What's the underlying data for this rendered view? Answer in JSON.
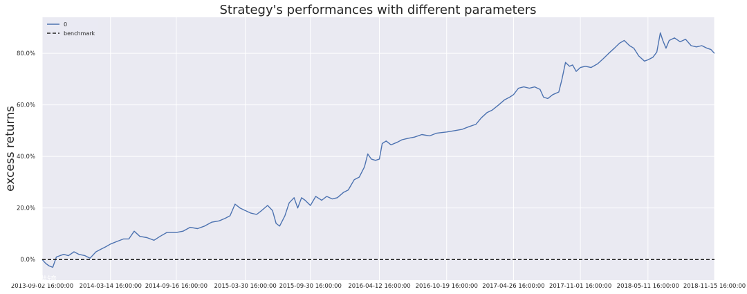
{
  "chart_data": {
    "type": "line",
    "title": "Strategy's performances with different parameters",
    "xlabel": "",
    "ylabel": "excess returns",
    "x_tick_labels": [
      "2013-09-02 16:00:00",
      "2014-03-14 16:00:00",
      "2014-09-16 16:00:00",
      "2015-03-30 16:00:00",
      "2015-09-30 16:00:00",
      "2016-04-12 16:00:00",
      "2016-10-19 16:00:00",
      "2017-04-26 16:00:00",
      "2017-11-01 16:00:00",
      "2018-05-11 16:00:00",
      "2018-11-15 16:00:00"
    ],
    "y_tick_labels": [
      "0.0%",
      "20.0%",
      "40.0%",
      "60.0%",
      "80.0%"
    ],
    "y_ticks": [
      0,
      20,
      40,
      60,
      80
    ],
    "ylim": [
      -8,
      94
    ],
    "xlim": [
      "2013-09-02",
      "2018-11-15"
    ],
    "grid": true,
    "legend_position": "top-left",
    "series": [
      {
        "name": "0",
        "color": "#4c72b0",
        "style": "solid",
        "points": [
          [
            "2013-09-02",
            0.0
          ],
          [
            "2013-09-12",
            -1.5
          ],
          [
            "2013-09-22",
            -2.5
          ],
          [
            "2013-10-02",
            -3.0
          ],
          [
            "2013-10-12",
            1.0
          ],
          [
            "2013-10-22",
            1.5
          ],
          [
            "2013-11-02",
            2.0
          ],
          [
            "2013-11-15",
            1.5
          ],
          [
            "2013-12-01",
            3.0
          ],
          [
            "2013-12-15",
            2.0
          ],
          [
            "2014-01-01",
            1.5
          ],
          [
            "2014-01-15",
            0.5
          ],
          [
            "2014-02-01",
            3.0
          ],
          [
            "2014-02-15",
            4.0
          ],
          [
            "2014-03-01",
            5.0
          ],
          [
            "2014-03-14",
            6.0
          ],
          [
            "2014-04-01",
            7.0
          ],
          [
            "2014-04-20",
            8.0
          ],
          [
            "2014-05-05",
            8.0
          ],
          [
            "2014-05-20",
            11.0
          ],
          [
            "2014-06-05",
            9.0
          ],
          [
            "2014-06-25",
            8.5
          ],
          [
            "2014-07-15",
            7.5
          ],
          [
            "2014-08-01",
            9.0
          ],
          [
            "2014-08-20",
            10.5
          ],
          [
            "2014-09-16",
            10.5
          ],
          [
            "2014-10-05",
            11.0
          ],
          [
            "2014-10-25",
            12.5
          ],
          [
            "2014-11-15",
            12.0
          ],
          [
            "2014-12-05",
            13.0
          ],
          [
            "2014-12-25",
            14.5
          ],
          [
            "2015-01-15",
            15.0
          ],
          [
            "2015-02-01",
            16.0
          ],
          [
            "2015-02-15",
            17.0
          ],
          [
            "2015-03-01",
            21.5
          ],
          [
            "2015-03-15",
            20.0
          ],
          [
            "2015-03-30",
            19.0
          ],
          [
            "2015-04-15",
            18.0
          ],
          [
            "2015-05-01",
            17.5
          ],
          [
            "2015-05-15",
            19.0
          ],
          [
            "2015-06-01",
            21.0
          ],
          [
            "2015-06-15",
            19.0
          ],
          [
            "2015-06-25",
            14.0
          ],
          [
            "2015-07-05",
            13.0
          ],
          [
            "2015-07-20",
            17.0
          ],
          [
            "2015-08-01",
            22.0
          ],
          [
            "2015-08-15",
            24.0
          ],
          [
            "2015-08-25",
            20.0
          ],
          [
            "2015-09-05",
            24.0
          ],
          [
            "2015-09-15",
            23.0
          ],
          [
            "2015-09-30",
            21.0
          ],
          [
            "2015-10-15",
            24.5
          ],
          [
            "2015-11-01",
            23.0
          ],
          [
            "2015-11-15",
            24.5
          ],
          [
            "2015-12-01",
            23.5
          ],
          [
            "2015-12-15",
            24.0
          ],
          [
            "2016-01-01",
            26.0
          ],
          [
            "2016-01-15",
            27.0
          ],
          [
            "2016-02-01",
            31.0
          ],
          [
            "2016-02-15",
            32.0
          ],
          [
            "2016-03-01",
            36.0
          ],
          [
            "2016-03-10",
            41.0
          ],
          [
            "2016-03-20",
            39.0
          ],
          [
            "2016-04-01",
            38.5
          ],
          [
            "2016-04-12",
            39.0
          ],
          [
            "2016-04-20",
            45.0
          ],
          [
            "2016-05-01",
            46.0
          ],
          [
            "2016-05-15",
            44.5
          ],
          [
            "2016-06-01",
            45.5
          ],
          [
            "2016-06-15",
            46.5
          ],
          [
            "2016-07-01",
            47.0
          ],
          [
            "2016-07-20",
            47.5
          ],
          [
            "2016-08-10",
            48.5
          ],
          [
            "2016-09-01",
            48.0
          ],
          [
            "2016-09-20",
            49.0
          ],
          [
            "2016-10-19",
            49.5
          ],
          [
            "2016-11-10",
            50.0
          ],
          [
            "2016-12-01",
            50.5
          ],
          [
            "2016-12-20",
            51.5
          ],
          [
            "2017-01-10",
            52.5
          ],
          [
            "2017-01-25",
            55.0
          ],
          [
            "2017-02-10",
            57.0
          ],
          [
            "2017-02-25",
            58.0
          ],
          [
            "2017-03-15",
            60.0
          ],
          [
            "2017-04-01",
            62.0
          ],
          [
            "2017-04-15",
            63.0
          ],
          [
            "2017-04-26",
            64.0
          ],
          [
            "2017-05-10",
            66.5
          ],
          [
            "2017-05-25",
            67.0
          ],
          [
            "2017-06-10",
            66.5
          ],
          [
            "2017-06-25",
            67.0
          ],
          [
            "2017-07-10",
            66.0
          ],
          [
            "2017-07-20",
            63.0
          ],
          [
            "2017-08-01",
            62.5
          ],
          [
            "2017-08-15",
            64.0
          ],
          [
            "2017-09-01",
            65.0
          ],
          [
            "2017-09-10",
            70.0
          ],
          [
            "2017-09-20",
            76.5
          ],
          [
            "2017-10-01",
            75.0
          ],
          [
            "2017-10-10",
            75.5
          ],
          [
            "2017-10-20",
            73.0
          ],
          [
            "2017-11-01",
            74.5
          ],
          [
            "2017-11-15",
            75.0
          ],
          [
            "2017-12-01",
            74.5
          ],
          [
            "2017-12-20",
            76.0
          ],
          [
            "2018-01-05",
            78.0
          ],
          [
            "2018-01-20",
            80.0
          ],
          [
            "2018-02-05",
            82.0
          ],
          [
            "2018-02-20",
            84.0
          ],
          [
            "2018-03-05",
            85.0
          ],
          [
            "2018-03-20",
            83.0
          ],
          [
            "2018-04-01",
            82.0
          ],
          [
            "2018-04-15",
            79.0
          ],
          [
            "2018-05-01",
            77.0
          ],
          [
            "2018-05-11",
            77.5
          ],
          [
            "2018-05-25",
            78.5
          ],
          [
            "2018-06-05",
            80.5
          ],
          [
            "2018-06-15",
            88.0
          ],
          [
            "2018-06-22",
            85.0
          ],
          [
            "2018-07-01",
            82.0
          ],
          [
            "2018-07-10",
            85.0
          ],
          [
            "2018-07-25",
            86.0
          ],
          [
            "2018-08-10",
            84.5
          ],
          [
            "2018-08-25",
            85.5
          ],
          [
            "2018-09-10",
            83.0
          ],
          [
            "2018-09-25",
            82.5
          ],
          [
            "2018-10-10",
            83.0
          ],
          [
            "2018-10-25",
            82.0
          ],
          [
            "2018-11-05",
            81.5
          ],
          [
            "2018-11-15",
            80.0
          ]
        ]
      },
      {
        "name": "benchmark",
        "color": "#222222",
        "style": "dashed",
        "points": [
          [
            "2013-09-02",
            0.0
          ],
          [
            "2018-11-15",
            0.0
          ]
        ]
      }
    ]
  },
  "watermark": "大数喵镜"
}
